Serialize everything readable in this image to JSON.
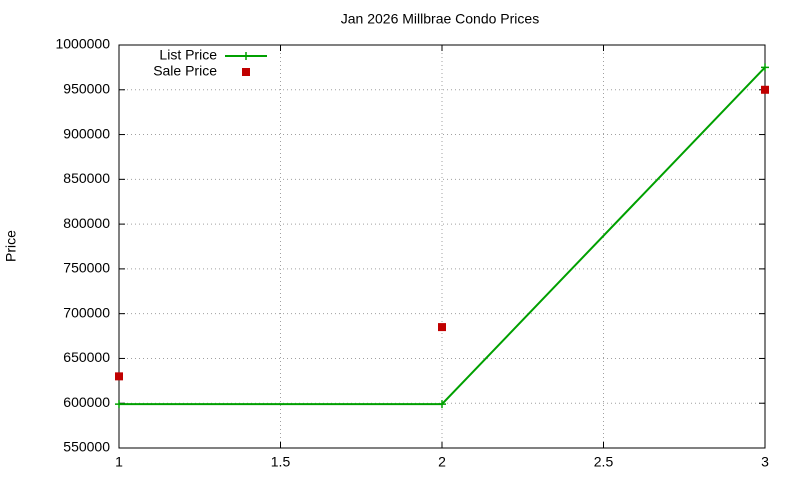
{
  "chart_data": {
    "type": "line",
    "title": "Jan 2026 Millbrae Condo Prices",
    "y_label": "Price",
    "x": [
      1,
      2,
      3
    ],
    "series": [
      {
        "name": "List Price",
        "color": "#00a000",
        "values": [
          599000,
          599000,
          975000
        ],
        "marker": "plus",
        "line": true
      },
      {
        "name": "Sale Price",
        "color": "#c00000",
        "values": [
          630000,
          685000,
          950000
        ],
        "marker": "square",
        "line": false
      }
    ],
    "xlim": [
      1,
      3
    ],
    "xticks": [
      1,
      1.5,
      2,
      2.5,
      3
    ],
    "ylim": [
      550000,
      1000000
    ],
    "yticks": [
      550000,
      600000,
      650000,
      700000,
      750000,
      800000,
      850000,
      900000,
      950000,
      1000000
    ],
    "grid": true,
    "legend": "top-left"
  }
}
